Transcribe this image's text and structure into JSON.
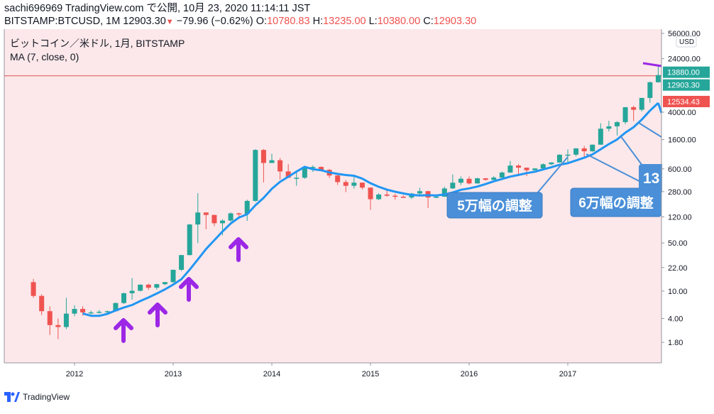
{
  "header": {
    "line1": "sachi696969 TradingView.com で公開, 10月 23, 2020 11:14:11 JST",
    "symbol": "BITSTAMP:BTCUSD, 1M 12903.30",
    "change_arrow": "▼",
    "change": "−79.96 (−0.62%)",
    "o_label": "O:",
    "o_value": "10780.83",
    "h_label": "H:",
    "h_value": "13235.00",
    "l_label": "L:",
    "l_value": "10380.00",
    "c_label": "C:",
    "c_value": "12903.30"
  },
  "legend": {
    "title": "ビットコイン／米ドル, 1月, BITSTAMP",
    "indicator": "MA (7, close, 0)"
  },
  "footer": {
    "brand": "TradingView"
  },
  "colors": {
    "up": "#26a69a",
    "down": "#ef5350",
    "ma": "#2196f3",
    "background": "#fce8ea",
    "arrow": "#9c27e6",
    "callout": "#4a8fd8",
    "hline": "#d9534f"
  },
  "chart_data": {
    "type": "candlestick",
    "scale": "log",
    "currency": "USD",
    "y_ticks": [
      "1.80",
      "4.00",
      "10.00",
      "22.00",
      "50.00",
      "120.00",
      "280.00",
      "600.00",
      "1600.00",
      "4000.00",
      "24000.00",
      "56000.00"
    ],
    "x_ticks": [
      "2012",
      "2013",
      "2014",
      "2015",
      "2016",
      "2017"
    ],
    "price_labels": [
      {
        "text": "13880.00",
        "color": "#26a69a"
      },
      {
        "text": "12903.30",
        "color": "#26a69a"
      },
      {
        "text": "12534.43",
        "color": "#ef5350"
      }
    ],
    "candles": [
      {
        "t": "2011-08",
        "o": 13.5,
        "h": 15,
        "l": 8,
        "c": 8.5
      },
      {
        "t": "2011-09",
        "o": 8.5,
        "h": 9,
        "l": 4.5,
        "c": 5.1
      },
      {
        "t": "2011-10",
        "o": 5.1,
        "h": 6,
        "l": 2.3,
        "c": 3.2
      },
      {
        "t": "2011-11",
        "o": 3.2,
        "h": 4.0,
        "l": 2.0,
        "c": 3.0
      },
      {
        "t": "2011-12",
        "o": 3.0,
        "h": 8,
        "l": 2.8,
        "c": 4.7
      },
      {
        "t": "2012-01",
        "o": 4.7,
        "h": 6.2,
        "l": 4.3,
        "c": 5.5
      },
      {
        "t": "2012-02",
        "o": 5.5,
        "h": 6.0,
        "l": 4.4,
        "c": 4.9
      },
      {
        "t": "2012-03",
        "o": 4.9,
        "h": 5.2,
        "l": 4.6,
        "c": 4.9
      },
      {
        "t": "2012-04",
        "o": 4.9,
        "h": 5.3,
        "l": 4.7,
        "c": 5.0
      },
      {
        "t": "2012-05",
        "o": 5.0,
        "h": 5.2,
        "l": 4.8,
        "c": 5.1
      },
      {
        "t": "2012-06",
        "o": 5.1,
        "h": 6.8,
        "l": 5.0,
        "c": 6.7
      },
      {
        "t": "2012-07",
        "o": 6.7,
        "h": 9.5,
        "l": 6.5,
        "c": 9.3
      },
      {
        "t": "2012-08",
        "o": 9.3,
        "h": 15.5,
        "l": 7.5,
        "c": 10.1
      },
      {
        "t": "2012-09",
        "o": 10.1,
        "h": 12.5,
        "l": 9.9,
        "c": 12.4
      },
      {
        "t": "2012-10",
        "o": 12.4,
        "h": 12.8,
        "l": 10.4,
        "c": 11.2
      },
      {
        "t": "2012-11",
        "o": 11.2,
        "h": 12.8,
        "l": 10.5,
        "c": 12.6
      },
      {
        "t": "2012-12",
        "o": 12.6,
        "h": 13.6,
        "l": 12.2,
        "c": 13.5
      },
      {
        "t": "2013-01",
        "o": 13.5,
        "h": 20.5,
        "l": 13.2,
        "c": 20.4
      },
      {
        "t": "2013-02",
        "o": 20.4,
        "h": 33.4,
        "l": 19.6,
        "c": 33.4
      },
      {
        "t": "2013-03",
        "o": 33.4,
        "h": 95,
        "l": 33.0,
        "c": 93
      },
      {
        "t": "2013-04",
        "o": 93,
        "h": 266,
        "l": 50,
        "c": 139
      },
      {
        "t": "2013-05",
        "o": 139,
        "h": 140,
        "l": 79,
        "c": 128
      },
      {
        "t": "2013-06",
        "o": 128,
        "h": 129,
        "l": 88,
        "c": 97
      },
      {
        "t": "2013-07",
        "o": 97,
        "h": 111,
        "l": 65,
        "c": 106
      },
      {
        "t": "2013-08",
        "o": 106,
        "h": 139,
        "l": 102,
        "c": 135
      },
      {
        "t": "2013-09",
        "o": 135,
        "h": 138,
        "l": 118,
        "c": 133
      },
      {
        "t": "2013-10",
        "o": 133,
        "h": 213,
        "l": 105,
        "c": 205
      },
      {
        "t": "2013-11",
        "o": 205,
        "h": 1163,
        "l": 199,
        "c": 1130
      },
      {
        "t": "2013-12",
        "o": 1130,
        "h": 1163,
        "l": 380,
        "c": 730
      },
      {
        "t": "2014-01",
        "o": 730,
        "h": 995,
        "l": 740,
        "c": 800
      },
      {
        "t": "2014-02",
        "o": 800,
        "h": 860,
        "l": 420,
        "c": 550
      },
      {
        "t": "2014-03",
        "o": 550,
        "h": 700,
        "l": 440,
        "c": 445
      },
      {
        "t": "2014-04",
        "o": 445,
        "h": 545,
        "l": 340,
        "c": 445
      },
      {
        "t": "2014-05",
        "o": 445,
        "h": 640,
        "l": 430,
        "c": 625
      },
      {
        "t": "2014-06",
        "o": 625,
        "h": 675,
        "l": 540,
        "c": 640
      },
      {
        "t": "2014-07",
        "o": 640,
        "h": 650,
        "l": 570,
        "c": 580
      },
      {
        "t": "2014-08",
        "o": 580,
        "h": 600,
        "l": 440,
        "c": 480
      },
      {
        "t": "2014-09",
        "o": 480,
        "h": 505,
        "l": 350,
        "c": 385
      },
      {
        "t": "2014-10",
        "o": 385,
        "h": 415,
        "l": 275,
        "c": 340
      },
      {
        "t": "2014-11",
        "o": 340,
        "h": 460,
        "l": 310,
        "c": 378
      },
      {
        "t": "2014-12",
        "o": 378,
        "h": 380,
        "l": 300,
        "c": 320
      },
      {
        "t": "2015-01",
        "o": 320,
        "h": 320,
        "l": 152,
        "c": 217
      },
      {
        "t": "2015-02",
        "o": 217,
        "h": 265,
        "l": 211,
        "c": 254
      },
      {
        "t": "2015-03",
        "o": 254,
        "h": 300,
        "l": 236,
        "c": 244
      },
      {
        "t": "2015-04",
        "o": 244,
        "h": 260,
        "l": 214,
        "c": 236
      },
      {
        "t": "2015-05",
        "o": 236,
        "h": 247,
        "l": 227,
        "c": 230
      },
      {
        "t": "2015-06",
        "o": 230,
        "h": 267,
        "l": 218,
        "c": 263
      },
      {
        "t": "2015-07",
        "o": 263,
        "h": 318,
        "l": 253,
        "c": 284
      },
      {
        "t": "2015-08",
        "o": 284,
        "h": 288,
        "l": 162,
        "c": 230
      },
      {
        "t": "2015-09",
        "o": 230,
        "h": 242,
        "l": 225,
        "c": 236
      },
      {
        "t": "2015-10",
        "o": 236,
        "h": 330,
        "l": 235,
        "c": 311
      },
      {
        "t": "2015-11",
        "o": 311,
        "h": 500,
        "l": 307,
        "c": 377
      },
      {
        "t": "2015-12",
        "o": 377,
        "h": 465,
        "l": 348,
        "c": 430
      },
      {
        "t": "2016-01",
        "o": 430,
        "h": 465,
        "l": 355,
        "c": 368
      },
      {
        "t": "2016-02",
        "o": 368,
        "h": 445,
        "l": 365,
        "c": 437
      },
      {
        "t": "2016-03",
        "o": 437,
        "h": 440,
        "l": 405,
        "c": 415
      },
      {
        "t": "2016-04",
        "o": 415,
        "h": 470,
        "l": 412,
        "c": 448
      },
      {
        "t": "2016-05",
        "o": 448,
        "h": 550,
        "l": 437,
        "c": 530
      },
      {
        "t": "2016-06",
        "o": 530,
        "h": 780,
        "l": 525,
        "c": 670
      },
      {
        "t": "2016-07",
        "o": 670,
        "h": 700,
        "l": 480,
        "c": 624
      },
      {
        "t": "2016-08",
        "o": 624,
        "h": 625,
        "l": 470,
        "c": 573
      },
      {
        "t": "2016-09",
        "o": 573,
        "h": 615,
        "l": 570,
        "c": 608
      },
      {
        "t": "2016-10",
        "o": 608,
        "h": 720,
        "l": 605,
        "c": 700
      },
      {
        "t": "2016-11",
        "o": 700,
        "h": 750,
        "l": 680,
        "c": 742
      },
      {
        "t": "2016-12",
        "o": 742,
        "h": 975,
        "l": 740,
        "c": 963
      },
      {
        "t": "2017-01",
        "o": 963,
        "h": 1150,
        "l": 750,
        "c": 965
      },
      {
        "t": "2017-02",
        "o": 965,
        "h": 1200,
        "l": 915,
        "c": 1190
      },
      {
        "t": "2017-03",
        "o": 1190,
        "h": 1290,
        "l": 890,
        "c": 1080
      },
      {
        "t": "2017-04",
        "o": 1080,
        "h": 1350,
        "l": 1060,
        "c": 1348
      },
      {
        "t": "2017-05",
        "o": 1348,
        "h": 2760,
        "l": 1340,
        "c": 2300
      },
      {
        "t": "2017-06",
        "o": 2300,
        "h": 3000,
        "l": 2100,
        "c": 2490
      },
      {
        "t": "2017-07",
        "o": 2490,
        "h": 2960,
        "l": 1840,
        "c": 2870
      },
      {
        "t": "2017-08",
        "o": 2870,
        "h": 4750,
        "l": 2670,
        "c": 4730
      },
      {
        "t": "2017-09",
        "o": 4730,
        "h": 4970,
        "l": 2980,
        "c": 4340
      },
      {
        "t": "2017-10",
        "o": 4340,
        "h": 6450,
        "l": 4100,
        "c": 6450
      },
      {
        "t": "2017-11",
        "o": 6450,
        "h": 11200,
        "l": 5500,
        "c": 10900
      },
      {
        "t": "2017-12",
        "o": 10900,
        "h": 19600,
        "l": 10800,
        "c": 13880
      }
    ],
    "ma_period": 7,
    "annotations": [
      {
        "type": "callout",
        "text": "5万幅の調整"
      },
      {
        "type": "callout",
        "text": "6万幅の調整"
      },
      {
        "type": "callout",
        "text": "13"
      }
    ]
  }
}
